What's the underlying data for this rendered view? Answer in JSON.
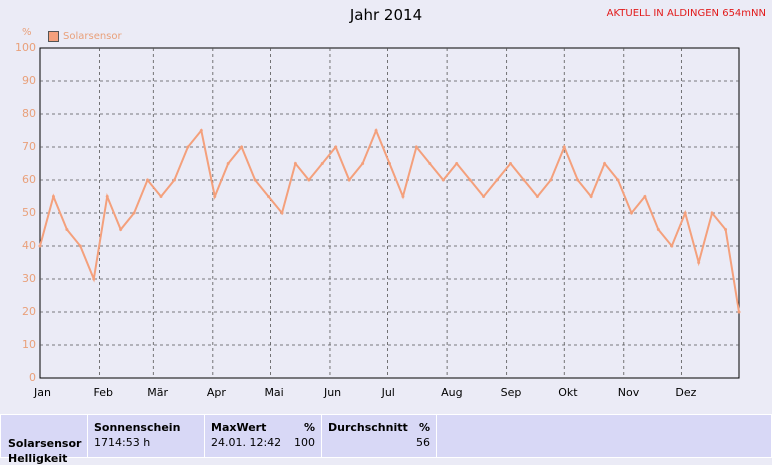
{
  "header": {
    "title": "Jahr 2014",
    "station": "AKTUELL IN ALDINGEN 654mNN"
  },
  "colors": {
    "series": "#f4a07c",
    "axis_text": "#e9a07a",
    "station": "#e21a1a"
  },
  "chart_data": {
    "type": "line",
    "title": "Jahr 2014",
    "ylabel": "%",
    "ylim": [
      0,
      100
    ],
    "yticks": [
      0,
      10,
      20,
      30,
      40,
      50,
      60,
      70,
      80,
      90,
      100
    ],
    "xticks": [
      "Jan",
      "Feb",
      "Mär",
      "Apr",
      "Mai",
      "Jun",
      "Jul",
      "Aug",
      "Sep",
      "Okt",
      "Nov",
      "Dez"
    ],
    "xlim_days": [
      1,
      365
    ],
    "grid": true,
    "legend_position": "top-left",
    "series": [
      {
        "name": "Solarsensor",
        "color": "#f4a07c",
        "x_day": [
          1,
          8,
          15,
          22,
          29,
          36,
          43,
          50,
          57,
          64,
          71,
          78,
          85,
          92,
          99,
          106,
          113,
          120,
          127,
          134,
          141,
          148,
          155,
          162,
          169,
          176,
          183,
          190,
          197,
          204,
          211,
          218,
          225,
          232,
          239,
          246,
          253,
          260,
          267,
          274,
          281,
          288,
          295,
          302,
          309,
          316,
          323,
          330,
          337,
          344,
          351,
          358,
          365
        ],
        "values": [
          40,
          55,
          45,
          40,
          30,
          55,
          45,
          50,
          60,
          55,
          60,
          70,
          75,
          55,
          65,
          70,
          60,
          55,
          50,
          65,
          60,
          65,
          70,
          60,
          65,
          75,
          65,
          55,
          70,
          65,
          60,
          65,
          60,
          55,
          60,
          65,
          60,
          55,
          60,
          70,
          60,
          55,
          65,
          60,
          50,
          55,
          45,
          40,
          50,
          35,
          50,
          45,
          20
        ]
      }
    ]
  },
  "table": {
    "header_row": {
      "sonnenschein": "Sonnenschein",
      "maxwert": "MaxWert",
      "max_unit": "%",
      "durchschnitt": "Durchschnitt",
      "avg_unit": "%"
    },
    "row": {
      "label": "Solarsensor",
      "sonnenschein": "1714:53 h",
      "max_time": "24.01.  12:42",
      "max_value": "100",
      "avg_value": "56"
    },
    "next_row_label": "Helligkeit"
  }
}
